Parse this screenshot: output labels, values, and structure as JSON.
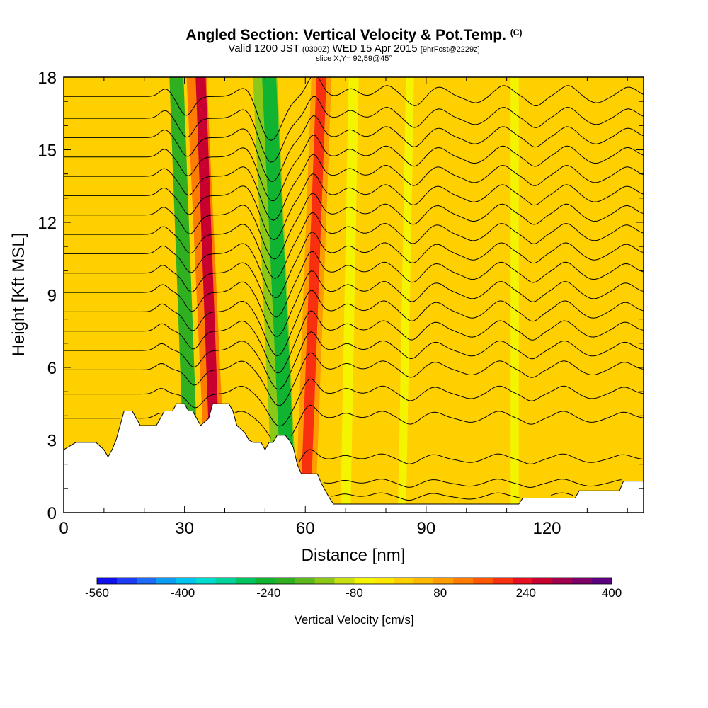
{
  "title": {
    "main": "Angled Section: Vertical Velocity & Pot.Temp.",
    "copyright": "(C)",
    "valid_prefix": "Valid 1200 JST",
    "valid_utc": "(0300Z)",
    "valid_date": "WED 15 Apr 2015",
    "forecast": "[9hrFcst@2229z]",
    "slice": "slice X,Y= 92,59@45°"
  },
  "colors": {
    "frame": "#000000",
    "terrain": "#ffffff",
    "background_field": "#ffd000",
    "contour": "#000000"
  },
  "chart_data": {
    "type": "heatmap",
    "xlabel": "Distance [nm]",
    "ylabel": "Height [Kft MSL]",
    "xlim": [
      0,
      144
    ],
    "ylim": [
      0,
      18
    ],
    "x_ticks": [
      0,
      30,
      60,
      90,
      120
    ],
    "y_ticks": [
      0,
      3,
      6,
      9,
      12,
      15,
      18
    ],
    "colorbar": {
      "label": "Vertical Velocity [cm/s]",
      "min": -560,
      "max": 400,
      "step": 40,
      "tick_labels": [
        "-560",
        "-400",
        "-240",
        "-80",
        "80",
        "240",
        "400"
      ],
      "colors": [
        "#1010ee",
        "#1c3cf8",
        "#1c6cf8",
        "#0c9cf4",
        "#00c4ee",
        "#00dcd0",
        "#00d49c",
        "#00c460",
        "#10b430",
        "#30b020",
        "#5cb81c",
        "#8cc818",
        "#c8e010",
        "#f4f400",
        "#ffe800",
        "#ffd000",
        "#ffb800",
        "#ff9c00",
        "#ff7c00",
        "#ff5800",
        "#f83010",
        "#e81020",
        "#c80030",
        "#a0004c",
        "#7c0068",
        "#5c0080"
      ]
    },
    "bands": [
      {
        "center_bottom": 38,
        "center_top": 34,
        "value": 320,
        "width": 2.5
      },
      {
        "center_bottom": 38,
        "center_top": 33,
        "value": 160,
        "width": 5
      },
      {
        "center_bottom": 32,
        "center_top": 28,
        "value": -200,
        "width": 3.5
      },
      {
        "center_bottom": 56,
        "center_top": 51,
        "value": -220,
        "width": 3.5
      },
      {
        "center_bottom": 55,
        "center_top": 50,
        "value": -120,
        "width": 6
      },
      {
        "center_bottom": 60,
        "center_top": 64,
        "value": 240,
        "width": 2.5
      },
      {
        "center_bottom": 60,
        "center_top": 64,
        "value": 120,
        "width": 5
      },
      {
        "center_bottom": 24,
        "center_top": 22,
        "value": 60,
        "width": 4
      },
      {
        "center_bottom": 78,
        "center_top": 80,
        "value": 70,
        "width": 3
      },
      {
        "center_bottom": 88,
        "center_top": 90,
        "value": 60,
        "width": 3
      },
      {
        "center_bottom": 96,
        "center_top": 99,
        "value": 55,
        "width": 3
      },
      {
        "center_bottom": 106,
        "center_top": 108,
        "value": 60,
        "width": 3
      },
      {
        "center_bottom": 116,
        "center_top": 118,
        "value": 55,
        "width": 3
      },
      {
        "center_bottom": 128,
        "center_top": 126,
        "value": 60,
        "width": 3
      },
      {
        "center_bottom": 140,
        "center_top": 140,
        "value": 55,
        "width": 3
      },
      {
        "center_bottom": 70,
        "center_top": 72,
        "value": -20,
        "width": 2.5
      },
      {
        "center_bottom": 84,
        "center_top": 86,
        "value": -20,
        "width": 2
      },
      {
        "center_bottom": 112,
        "center_top": 112,
        "value": -20,
        "width": 2
      }
    ],
    "terrain": [
      [
        0,
        2.6
      ],
      [
        3,
        2.9
      ],
      [
        8,
        2.9
      ],
      [
        10,
        2.6
      ],
      [
        11,
        2.3
      ],
      [
        12,
        2.6
      ],
      [
        13,
        3.0
      ],
      [
        14,
        3.6
      ],
      [
        15,
        4.2
      ],
      [
        17,
        4.2
      ],
      [
        18,
        3.9
      ],
      [
        19,
        3.6
      ],
      [
        23,
        3.6
      ],
      [
        24,
        3.9
      ],
      [
        25,
        4.2
      ],
      [
        27,
        4.2
      ],
      [
        28,
        4.5
      ],
      [
        30,
        4.5
      ],
      [
        31,
        4.2
      ],
      [
        32,
        4.2
      ],
      [
        33,
        3.9
      ],
      [
        34,
        3.6
      ],
      [
        36,
        3.9
      ],
      [
        37,
        4.5
      ],
      [
        41,
        4.5
      ],
      [
        42,
        4.2
      ],
      [
        43,
        3.6
      ],
      [
        45,
        3.3
      ],
      [
        46,
        3.0
      ],
      [
        47,
        2.9
      ],
      [
        49,
        2.9
      ],
      [
        50,
        2.6
      ],
      [
        51,
        2.9
      ],
      [
        52,
        2.9
      ],
      [
        53,
        3.2
      ],
      [
        55,
        3.2
      ],
      [
        56,
        3.0
      ],
      [
        57,
        2.7
      ],
      [
        58,
        2.0
      ],
      [
        59,
        1.6
      ],
      [
        63,
        1.6
      ],
      [
        64,
        1.2
      ],
      [
        65,
        0.9
      ],
      [
        66,
        0.6
      ],
      [
        67,
        0.35
      ],
      [
        113,
        0.35
      ],
      [
        114,
        0.6
      ],
      [
        127,
        0.6
      ],
      [
        128,
        0.9
      ],
      [
        138,
        0.9
      ],
      [
        139,
        1.3
      ],
      [
        144,
        1.3
      ]
    ],
    "isentropes": {
      "count": 20,
      "base_levels": [
        0.65,
        1.2,
        2.2,
        3.9,
        4.9,
        5.9,
        6.7,
        7.5,
        8.3,
        9.1,
        9.9,
        10.7,
        11.5,
        12.3,
        13.1,
        13.9,
        14.7,
        15.5,
        16.3,
        17.2
      ]
    }
  }
}
